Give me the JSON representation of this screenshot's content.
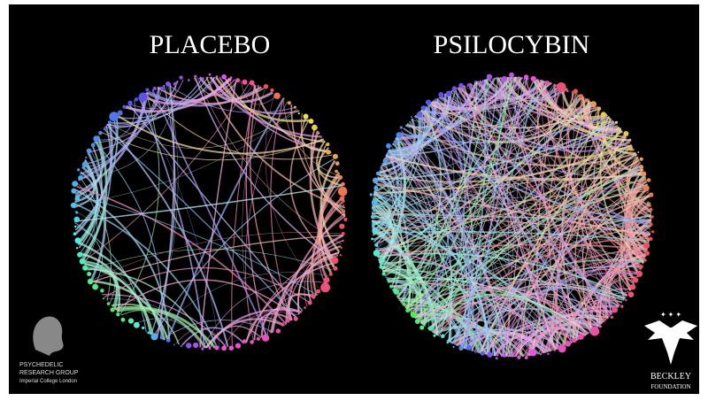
{
  "panels": [
    {
      "title": "PLACEBO"
    },
    {
      "title": "PSILOCYBIN"
    }
  ],
  "logos": {
    "left": [
      "PSYCHEDELIC",
      "RESEARCH GROUP",
      "Imperial College London"
    ],
    "right": [
      "BECKLEY",
      "FOUNDATION"
    ]
  }
}
